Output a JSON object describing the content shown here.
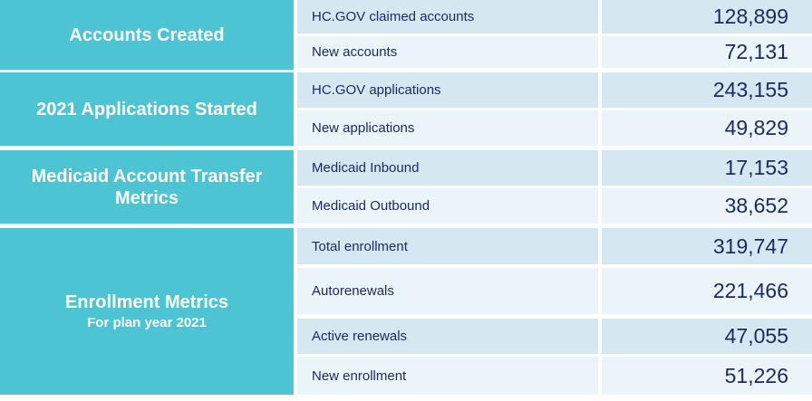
{
  "colors": {
    "section_teal": "#4CC4D4",
    "row_shade_dark": "#D5E8F2",
    "row_shade_light": "#EAF4F9",
    "text_navy": "#1A2A5E",
    "section_text": "#FFFFFF",
    "gap_white": "#FFFFFF"
  },
  "table": {
    "sections": [
      {
        "title": "Accounts Created",
        "subtitle": ""
      },
      {
        "title": "2021 Applications Started",
        "subtitle": ""
      },
      {
        "title": "Medicaid Account Transfer Metrics",
        "subtitle": ""
      },
      {
        "title": "Enrollment Metrics",
        "subtitle": "For plan year 2021"
      }
    ],
    "rows": [
      {
        "label": "HC.GOV claimed accounts",
        "value": "128,899"
      },
      {
        "label": "New accounts",
        "value": "72,131"
      },
      {
        "label": "HC.GOV applications",
        "value": "243,155"
      },
      {
        "label": "New applications",
        "value": "49,829"
      },
      {
        "label": "Medicaid Inbound",
        "value": "17,153"
      },
      {
        "label": "Medicaid Outbound",
        "value": "38,652"
      },
      {
        "label": "Total enrollment",
        "value": "319,747"
      },
      {
        "label": "Autorenewals",
        "value": "221,466"
      },
      {
        "label": "Active renewals",
        "value": "47,055"
      },
      {
        "label": "New enrollment",
        "value": "51,226"
      }
    ]
  },
  "chart_data": {
    "type": "table",
    "title": "",
    "sections": [
      {
        "title": "Accounts Created",
        "rows": [
          {
            "metric": "HC.GOV claimed accounts",
            "value": 128899
          },
          {
            "metric": "New accounts",
            "value": 72131
          }
        ]
      },
      {
        "title": "2021 Applications Started",
        "rows": [
          {
            "metric": "HC.GOV applications",
            "value": 243155
          },
          {
            "metric": "New applications",
            "value": 49829
          }
        ]
      },
      {
        "title": "Medicaid Account Transfer Metrics",
        "rows": [
          {
            "metric": "Medicaid Inbound",
            "value": 17153
          },
          {
            "metric": "Medicaid Outbound",
            "value": 38652
          }
        ]
      },
      {
        "title": "Enrollment Metrics",
        "subtitle": "For plan year 2021",
        "rows": [
          {
            "metric": "Total enrollment",
            "value": 319747
          },
          {
            "metric": "Autorenewals",
            "value": 221466
          },
          {
            "metric": "Active renewals",
            "value": 47055
          },
          {
            "metric": "New enrollment",
            "value": 51226
          }
        ]
      }
    ]
  }
}
